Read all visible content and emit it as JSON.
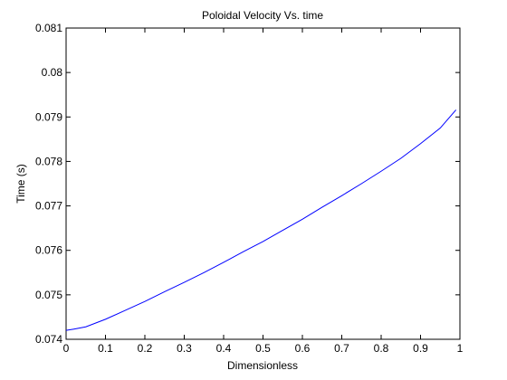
{
  "chart_data": {
    "type": "line",
    "title": "Poloidal Velocity Vs. time",
    "xlabel": "Dimensionless",
    "ylabel": "Time (s)",
    "xlim": [
      0,
      1
    ],
    "ylim": [
      0.074,
      0.081
    ],
    "xticks": [
      "0",
      "0.1",
      "0.2",
      "0.3",
      "0.4",
      "0.5",
      "0.6",
      "0.7",
      "0.8",
      "0.9",
      "1"
    ],
    "yticks": [
      "0.074",
      "0.075",
      "0.076",
      "0.077",
      "0.078",
      "0.079",
      "0.08",
      "0.081"
    ],
    "grid": false,
    "series": [
      {
        "color": "#0000ff",
        "x": [
          0.0,
          0.02,
          0.05,
          0.1,
          0.15,
          0.2,
          0.25,
          0.3,
          0.35,
          0.4,
          0.45,
          0.5,
          0.55,
          0.6,
          0.65,
          0.7,
          0.75,
          0.8,
          0.85,
          0.9,
          0.95,
          0.99
        ],
        "y": [
          0.0742,
          0.07423,
          0.07428,
          0.07445,
          0.07465,
          0.07485,
          0.07507,
          0.07528,
          0.0755,
          0.07573,
          0.07597,
          0.0762,
          0.07645,
          0.0767,
          0.07697,
          0.07723,
          0.0775,
          0.07778,
          0.07807,
          0.0784,
          0.07875,
          0.07916
        ]
      }
    ]
  }
}
